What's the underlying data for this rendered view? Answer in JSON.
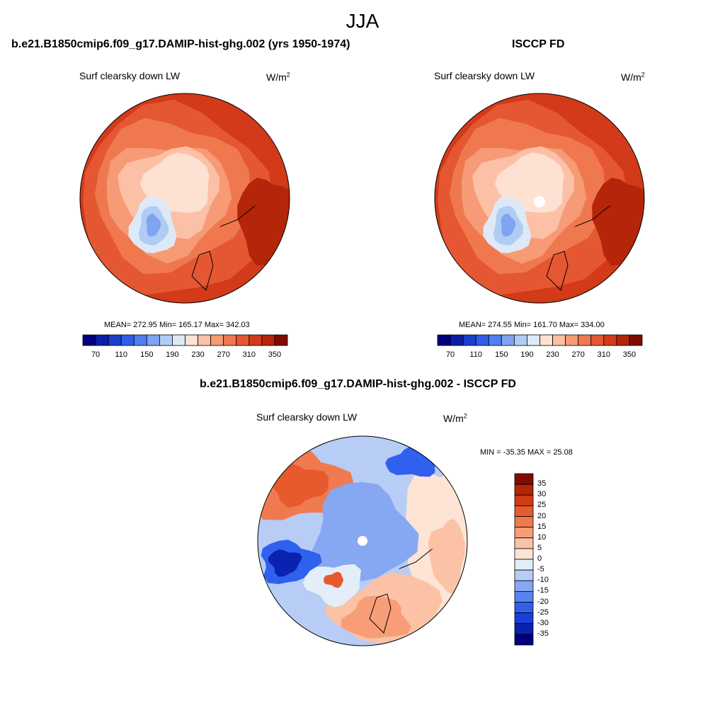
{
  "page": {
    "title": "JJA"
  },
  "colors": {
    "abs_scale": [
      "#00007f",
      "#0a1fa8",
      "#1a3ed0",
      "#2f5fe8",
      "#4f7ff0",
      "#7fa4f2",
      "#b1ccf4",
      "#dde9f7",
      "#fde1d2",
      "#fbc0a5",
      "#f79a76",
      "#f0784f",
      "#e55732",
      "#d23a19",
      "#b52509",
      "#7f0b00"
    ],
    "diff_scale": [
      "#00007f",
      "#0a22b0",
      "#1a3ed8",
      "#2f60ee",
      "#5784f0",
      "#86a8f2",
      "#b7cdf5",
      "#e3eef9",
      "#fde4d4",
      "#fbc2a6",
      "#f79d78",
      "#f07a50",
      "#e65a2e",
      "#d13b12",
      "#b22505",
      "#800c00"
    ]
  },
  "panels": [
    {
      "title": "b.e21.B1850cmip6.f09_g17.DAMIP-hist-ghg.002 (yrs 1950-1974)",
      "variable": "Surf clearsky down LW",
      "units_base": "W/m",
      "units_exp": "2",
      "stats": "MEAN= 272.95  Min= 165.17  Max= 342.03"
    },
    {
      "title": "ISCCP FD",
      "variable": "Surf clearsky down LW",
      "units_base": "W/m",
      "units_exp": "2",
      "stats": "MEAN= 274.55  Min= 161.70  Max= 334.00"
    },
    {
      "title": "b.e21.B1850cmip6.f09_g17.DAMIP-hist-ghg.002 - ISCCP FD",
      "variable": "Surf clearsky down LW",
      "units_base": "W/m",
      "units_exp": "2",
      "stats": "MIN = -35.35 MAX =  25.08"
    }
  ],
  "chart_data": [
    {
      "type": "heatmap",
      "projection": "north-polar-stereographic",
      "title": "b.e21.B1850cmip6.f09_g17.DAMIP-hist-ghg.002 (yrs 1950-1974)",
      "variable": "Surf clearsky down LW",
      "units": "W/m2",
      "mean": 272.95,
      "min": 165.17,
      "max": 342.03,
      "colorbar_ticks": [
        "70",
        "110",
        "150",
        "190",
        "230",
        "270",
        "310",
        "350"
      ],
      "colorbar_orientation": "horizontal"
    },
    {
      "type": "heatmap",
      "projection": "north-polar-stereographic",
      "title": "ISCCP FD",
      "variable": "Surf clearsky down LW",
      "units": "W/m2",
      "mean": 274.55,
      "min": 161.7,
      "max": 334.0,
      "colorbar_ticks": [
        "70",
        "110",
        "150",
        "190",
        "230",
        "270",
        "310",
        "350"
      ],
      "colorbar_orientation": "horizontal"
    },
    {
      "type": "heatmap",
      "projection": "north-polar-stereographic",
      "title": "b.e21.B1850cmip6.f09_g17.DAMIP-hist-ghg.002 - ISCCP FD",
      "variable": "Surf clearsky down LW",
      "units": "W/m2",
      "min": -35.35,
      "max": 25.08,
      "colorbar_ticks": [
        "35",
        "30",
        "25",
        "20",
        "15",
        "10",
        "5",
        "0",
        "-5",
        "-10",
        "-15",
        "-20",
        "-25",
        "-30",
        "-35"
      ],
      "colorbar_orientation": "vertical"
    }
  ]
}
